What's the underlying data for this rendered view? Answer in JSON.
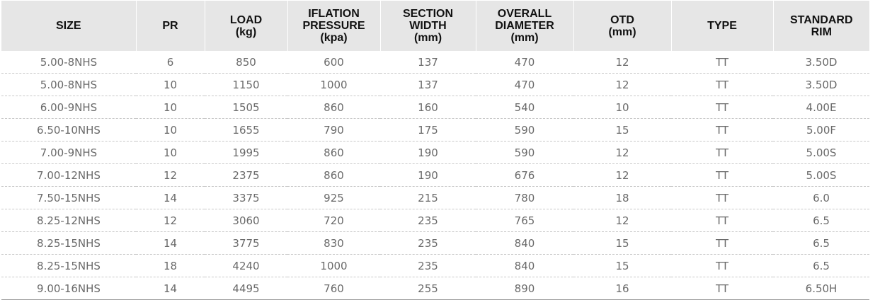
{
  "table": {
    "headers": [
      "SIZE",
      "PR",
      "LOAD\n(kg)",
      "IFLATION\nPRESSURE\n(kpa)",
      "SECTION\nWIDTH\n(mm)",
      "OVERALL\nDIAMETER\n(mm)",
      "OTD\n(mm)",
      "TYPE",
      "STANDARD\nRIM"
    ],
    "rows": [
      [
        "5.00-8NHS",
        "6",
        "850",
        "600",
        "137",
        "470",
        "12",
        "TT",
        "3.50D"
      ],
      [
        "5.00-8NHS",
        "10",
        "1150",
        "1000",
        "137",
        "470",
        "12",
        "TT",
        "3.50D"
      ],
      [
        "6.00-9NHS",
        "10",
        "1505",
        "860",
        "160",
        "540",
        "10",
        "TT",
        "4.00E"
      ],
      [
        "6.50-10NHS",
        "10",
        "1655",
        "790",
        "175",
        "590",
        "15",
        "TT",
        "5.00F"
      ],
      [
        "7.00-9NHS",
        "10",
        "1995",
        "860",
        "190",
        "590",
        "12",
        "TT",
        "5.00S"
      ],
      [
        "7.00-12NHS",
        "12",
        "2375",
        "860",
        "190",
        "676",
        "12",
        "TT",
        "5.00S"
      ],
      [
        "7.50-15NHS",
        "14",
        "3375",
        "925",
        "215",
        "780",
        "18",
        "TT",
        "6.0"
      ],
      [
        "8.25-12NHS",
        "12",
        "3060",
        "720",
        "235",
        "765",
        "12",
        "TT",
        "6.5"
      ],
      [
        "8.25-15NHS",
        "14",
        "3775",
        "830",
        "235",
        "840",
        "15",
        "TT",
        "6.5"
      ],
      [
        "8.25-15NHS",
        "18",
        "4240",
        "1000",
        "235",
        "840",
        "15",
        "TT",
        "6.5"
      ],
      [
        "9.00-16NHS",
        "14",
        "4495",
        "760",
        "255",
        "890",
        "16",
        "TT",
        "6.50H"
      ]
    ]
  }
}
